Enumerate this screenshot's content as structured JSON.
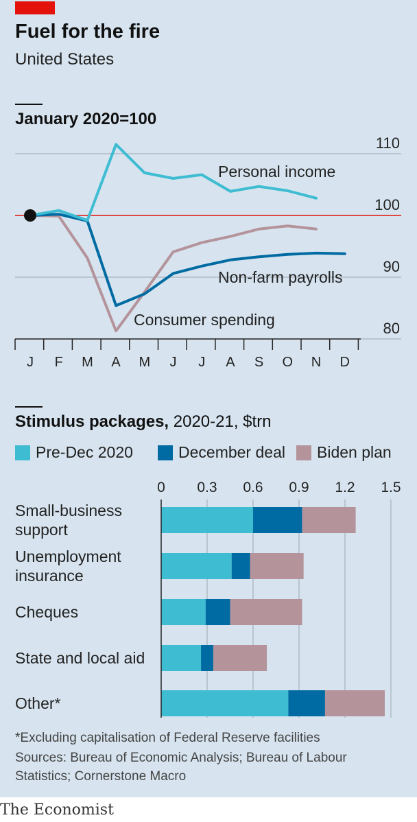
{
  "header": {
    "title": "Fuel for the fire",
    "subtitle": "United States",
    "accent_color": "#e3120b"
  },
  "line_section": {
    "unit_label": "January 2020=100"
  },
  "bar_section": {
    "title_bold": "Stimulus packages,",
    "title_rest": " 2020-21, $trn",
    "categories_display": [
      [
        "Small-business",
        "support"
      ],
      [
        "Unemployment",
        "insurance"
      ],
      [
        "Cheques"
      ],
      [
        "State and local aid"
      ],
      [
        "Other*"
      ]
    ]
  },
  "footer": {
    "note": "*Excluding capitalisation of Federal Reserve facilities",
    "sources_line1": "Sources: Bureau of Economic Analysis; Bureau of Labour",
    "sources_line2": "Statistics; Cornerstone Macro",
    "logo": "The Economist"
  },
  "chart_data": [
    {
      "type": "line",
      "title": "January 2020=100",
      "xlabel": "",
      "ylabel": "",
      "categories": [
        "J",
        "F",
        "M",
        "A",
        "M",
        "J",
        "J",
        "A",
        "S",
        "O",
        "N",
        "D"
      ],
      "yticks": [
        80,
        90,
        100,
        110
      ],
      "ylim": [
        80,
        110
      ],
      "reference_line": 100,
      "reference_color": "#e3120b",
      "series": [
        {
          "name": "Personal income",
          "color": "#3ebcd2",
          "values": [
            100,
            100.8,
            99.2,
            111.5,
            106.9,
            106.0,
            106.6,
            103.9,
            104.7,
            104.0,
            102.8,
            null
          ]
        },
        {
          "name": "Non-farm payrolls",
          "color": "#006ba2",
          "values": [
            100,
            100.2,
            99.1,
            85.4,
            87.3,
            90.6,
            91.8,
            92.8,
            93.3,
            93.7,
            93.9,
            93.8
          ]
        },
        {
          "name": "Consumer spending",
          "color": "#b4939b",
          "values": [
            100,
            99.9,
            93.1,
            81.3,
            87.6,
            94.1,
            95.6,
            96.6,
            97.8,
            98.3,
            97.8,
            null
          ]
        }
      ],
      "start_marker": "January 2020",
      "grid": true
    },
    {
      "type": "bar",
      "orientation": "horizontal",
      "stacked": true,
      "title": "Stimulus packages, 2020-21, $trn",
      "xlabel": "",
      "ylabel": "",
      "categories": [
        "Small-business support",
        "Unemployment insurance",
        "Cheques",
        "State and local aid",
        "Other*"
      ],
      "xlim": [
        0,
        1.5
      ],
      "xticks": [
        0,
        0.3,
        0.6,
        0.9,
        1.2,
        1.5
      ],
      "series": [
        {
          "name": "Pre-Dec 2020",
          "color": "#3ebcd2",
          "values": [
            0.6,
            0.46,
            0.29,
            0.26,
            0.83
          ]
        },
        {
          "name": "December deal",
          "color": "#006ba2",
          "values": [
            0.32,
            0.12,
            0.16,
            0.08,
            0.24
          ]
        },
        {
          "name": "Biden plan",
          "color": "#b4939b",
          "values": [
            0.35,
            0.35,
            0.47,
            0.35,
            0.39
          ]
        }
      ],
      "legend": "top",
      "grid": true
    }
  ]
}
